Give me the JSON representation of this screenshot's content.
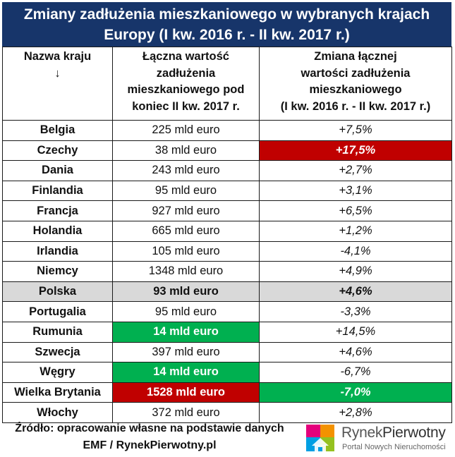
{
  "title": {
    "line1": "Zmiany zadłużenia mieszkaniowego w wybranych krajach",
    "line2": "Europy (I kw. 2016 r. - II kw. 2017 r.)"
  },
  "headers": {
    "country": [
      "Nazwa kraju",
      "↓"
    ],
    "value": [
      "Łączna wartość",
      "zadłużenia",
      "mieszkaniowego pod",
      "koniec II kw. 2017 r."
    ],
    "change": [
      "Zmiana łącznej",
      "wartości zadłużenia",
      "mieszkaniowego",
      "(I kw. 2016 r. - II kw. 2017 r.)"
    ]
  },
  "rows": [
    {
      "country": "Belgia",
      "value": "225 mld euro",
      "change": "+7,5%"
    },
    {
      "country": "Czechy",
      "value": "38 mld euro",
      "change": "+17,5%"
    },
    {
      "country": "Dania",
      "value": "243 mld euro",
      "change": "+2,7%"
    },
    {
      "country": "Finlandia",
      "value": "95 mld euro",
      "change": "+3,1%"
    },
    {
      "country": "Francja",
      "value": "927 mld euro",
      "change": "+6,5%"
    },
    {
      "country": "Holandia",
      "value": "665 mld euro",
      "change": "+1,2%"
    },
    {
      "country": "Irlandia",
      "value": "105 mld euro",
      "change": "-4,1%"
    },
    {
      "country": "Niemcy",
      "value": "1348 mld euro",
      "change": "+4,9%"
    },
    {
      "country": "Polska",
      "value": "93 mld euro",
      "change": "+4,6%"
    },
    {
      "country": "Portugalia",
      "value": "95 mld euro",
      "change": "-3,3%"
    },
    {
      "country": "Rumunia",
      "value": "14 mld euro",
      "change": "+14,5%"
    },
    {
      "country": "Szwecja",
      "value": "397 mld euro",
      "change": "+4,6%"
    },
    {
      "country": "Węgry",
      "value": "14 mld euro",
      "change": "-6,7%"
    },
    {
      "country": "Wielka Brytania",
      "value": "1528 mld euro",
      "change": "-7,0%"
    },
    {
      "country": "Włochy",
      "value": "372 mld euro",
      "change": "+2,8%"
    }
  ],
  "colors": {
    "title_bg": "#17356a",
    "highlight_max": "#c00000",
    "highlight_min": "#00b050",
    "highlight_poland": "#d9d9d9"
  },
  "source": {
    "line1": "Źródło: opracowanie własne na podstawie danych",
    "line2": "EMF / RynekPierwotny.pl"
  },
  "logo": {
    "icon": "house-puzzle-icon",
    "name_part1": "Rynek",
    "name_part2": "Pierwotny",
    "tagline": "Portal Nowych Nieruchomości"
  }
}
